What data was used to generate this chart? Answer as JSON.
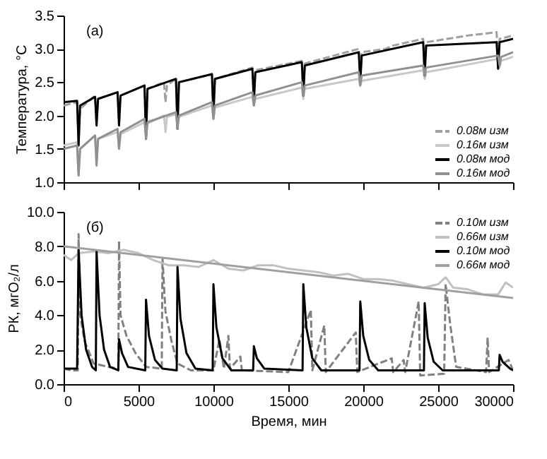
{
  "chart_data": [
    {
      "type": "line",
      "annotations": [
        "(а)"
      ],
      "ylabel": "Температура, °С",
      "xlim": [
        0,
        30000
      ],
      "xticks": [
        0,
        5000,
        10000,
        15000,
        20000,
        25000,
        30000
      ],
      "ylim": [
        1,
        3.5
      ],
      "yticks": [
        {
          "value": 1,
          "label": "1.0"
        },
        1.5,
        {
          "value": 2,
          "label": "2.0"
        },
        2.5,
        {
          "value": 3,
          "label": "3.0"
        },
        3.5
      ],
      "tick_labels": "y",
      "grid": false,
      "legend": "bottom right",
      "series": [
        {
          "name": "0.08м изм",
          "color": "#a0a0a0",
          "line_style": "dashed",
          "x": [
            0,
            900,
            1000,
            1100,
            2100,
            2200,
            2300,
            3600,
            3700,
            3800,
            5400,
            5500,
            5600,
            6700,
            6800,
            6900,
            7500,
            7600,
            7700,
            9900,
            10000,
            10100,
            12600,
            12700,
            12800,
            15900,
            16000,
            16100,
            19700,
            19800,
            19900,
            21500,
            22000,
            24000,
            24100,
            24200,
            27000,
            28900,
            29000,
            29100,
            30000
          ],
          "values": [
            2.15,
            2.2,
            1.6,
            2.1,
            2.3,
            1.9,
            2.25,
            2.35,
            1.9,
            2.3,
            2.45,
            1.7,
            2.4,
            2.5,
            2.2,
            2.45,
            2.55,
            1.85,
            2.5,
            2.62,
            2.05,
            2.55,
            2.72,
            2.3,
            2.68,
            2.82,
            2.4,
            2.78,
            3.0,
            2.6,
            2.95,
            3.0,
            3.05,
            3.15,
            2.7,
            3.1,
            3.2,
            3.25,
            2.8,
            3.15,
            3.2
          ]
        },
        {
          "name": "0.16м изм",
          "color": "#c8c8c8",
          "line_style": "solid",
          "x": [
            0,
            900,
            1000,
            1100,
            2100,
            2200,
            2300,
            3600,
            3700,
            3800,
            5400,
            5500,
            5600,
            6700,
            6800,
            6900,
            7500,
            7600,
            7700,
            9900,
            10000,
            10100,
            12600,
            12700,
            12800,
            15900,
            16000,
            16100,
            19700,
            19800,
            19900,
            24000,
            24100,
            24200,
            29000,
            29100,
            29200,
            30000
          ],
          "values": [
            1.55,
            1.6,
            1.1,
            1.5,
            1.7,
            1.3,
            1.65,
            1.75,
            1.5,
            1.72,
            1.9,
            1.7,
            1.88,
            2.0,
            1.75,
            1.98,
            2.02,
            1.85,
            1.98,
            2.15,
            1.95,
            2.12,
            2.28,
            2.15,
            2.25,
            2.42,
            2.25,
            2.4,
            2.55,
            2.45,
            2.52,
            2.68,
            2.55,
            2.65,
            2.85,
            2.72,
            2.82,
            2.88
          ]
        },
        {
          "name": "0.08м мод",
          "color": "#000000",
          "line_style": "solid",
          "x": [
            0,
            900,
            1000,
            1100,
            2100,
            2200,
            2300,
            3600,
            3700,
            3800,
            5400,
            5500,
            5600,
            7500,
            7600,
            7700,
            9900,
            10000,
            10100,
            12600,
            12700,
            12800,
            15900,
            16000,
            16100,
            19700,
            19800,
            19900,
            24000,
            24100,
            24200,
            28900,
            29000,
            29100,
            30000
          ],
          "values": [
            2.2,
            2.22,
            1.55,
            2.15,
            2.28,
            1.85,
            2.25,
            2.35,
            1.85,
            2.3,
            2.45,
            1.65,
            2.4,
            2.55,
            1.8,
            2.5,
            2.62,
            2.0,
            2.55,
            2.7,
            2.2,
            2.65,
            2.8,
            2.3,
            2.75,
            2.95,
            2.5,
            2.9,
            3.1,
            2.6,
            3.05,
            3.1,
            2.7,
            3.1,
            3.15
          ]
        },
        {
          "name": "0.16м мод",
          "color": "#909090",
          "line_style": "solid",
          "x": [
            0,
            900,
            1000,
            1100,
            2100,
            2200,
            2300,
            3600,
            3700,
            3800,
            5400,
            5500,
            5600,
            7500,
            7600,
            7700,
            9900,
            10000,
            10100,
            12600,
            12700,
            12800,
            15900,
            16000,
            16100,
            19700,
            19800,
            19900,
            24000,
            24100,
            24200,
            29000,
            29100,
            29200,
            30000
          ],
          "values": [
            1.5,
            1.55,
            1.1,
            1.5,
            1.7,
            1.25,
            1.65,
            1.8,
            1.5,
            1.75,
            1.95,
            1.65,
            1.9,
            2.05,
            1.8,
            2.0,
            2.2,
            1.95,
            2.15,
            2.35,
            2.15,
            2.3,
            2.5,
            2.3,
            2.45,
            2.65,
            2.45,
            2.6,
            2.75,
            2.6,
            2.72,
            2.9,
            2.75,
            2.88,
            2.95
          ]
        }
      ]
    },
    {
      "type": "line",
      "annotations": [
        "(б)"
      ],
      "xlabel": "Время, мин",
      "ylabel": "РК, мгО₂/л",
      "xlim": [
        0,
        30000
      ],
      "xticks": [
        0,
        5000,
        10000,
        15000,
        20000,
        25000,
        30000
      ],
      "ylim": [
        0,
        10
      ],
      "yticks": [
        {
          "value": 0,
          "label": "0.0"
        },
        {
          "value": 2,
          "label": "2.0"
        },
        {
          "value": 4,
          "label": "4.0"
        },
        {
          "value": 6,
          "label": "6.0"
        },
        {
          "value": 8,
          "label": "8.0"
        },
        {
          "value": 10,
          "label": "10.0"
        }
      ],
      "grid": false,
      "legend": "top right",
      "series": [
        {
          "name": "0.10м изм",
          "color": "#808080",
          "line_style": "dashed",
          "x": [
            0,
            500,
            950,
            1000,
            1100,
            1400,
            2000,
            3000,
            3650,
            3700,
            3800,
            4200,
            4800,
            5500,
            6550,
            6600,
            6800,
            7200,
            7600,
            8500,
            10000,
            10400,
            10700,
            11000,
            11100,
            11800,
            11900,
            15000,
            16500,
            16600,
            17400,
            17500,
            19500,
            19600,
            21900,
            22000,
            22700,
            22800,
            23700,
            23800,
            25400,
            25500,
            25800,
            26200,
            28200,
            28300,
            28400,
            29700,
            30000
          ],
          "values": [
            0.9,
            0.8,
            0.8,
            8.7,
            4.0,
            2.5,
            1.2,
            1.0,
            0.9,
            8.3,
            4.0,
            2.8,
            1.8,
            1.0,
            0.9,
            7.3,
            4.2,
            2.5,
            1.2,
            0.8,
            0.8,
            2.6,
            0.9,
            2.8,
            0.9,
            1.6,
            0.8,
            0.7,
            4.3,
            0.8,
            3.4,
            0.7,
            3.0,
            0.7,
            1.5,
            0.7,
            1.4,
            0.7,
            4.8,
            0.5,
            0.6,
            5.8,
            3.5,
            1.0,
            0.7,
            2.7,
            0.7,
            1.4,
            0.8
          ]
        },
        {
          "name": "0.66м изм",
          "color": "#c0c0c0",
          "line_style": "solid",
          "x": [
            0,
            500,
            1000,
            2000,
            3000,
            4000,
            5000,
            6000,
            7000,
            8000,
            9000,
            10000,
            11000,
            12000,
            13000,
            14000,
            15000,
            16000,
            17000,
            18000,
            19000,
            20000,
            21000,
            22000,
            23000,
            24000,
            25000,
            25500,
            26000,
            27000,
            28000,
            29000,
            29500,
            30000
          ],
          "values": [
            7.5,
            7.2,
            7.6,
            7.7,
            7.6,
            7.8,
            7.6,
            7.2,
            6.9,
            6.9,
            6.8,
            7.2,
            6.7,
            6.6,
            6.9,
            6.9,
            6.7,
            6.6,
            6.5,
            6.3,
            6.4,
            6.1,
            6.1,
            6.0,
            5.8,
            5.6,
            5.8,
            6.2,
            5.6,
            5.5,
            5.2,
            5.2,
            5.9,
            5.6
          ]
        },
        {
          "name": "0.10м мод",
          "color": "#000000",
          "line_style": "solid",
          "x": [
            0,
            900,
            1000,
            1200,
            1500,
            1900,
            2150,
            2200,
            2400,
            2700,
            3100,
            3650,
            3700,
            3900,
            4300,
            5450,
            5500,
            5700,
            6100,
            6600,
            7550,
            7600,
            7800,
            8200,
            8800,
            9950,
            10000,
            10200,
            10600,
            11200,
            12650,
            12700,
            12900,
            13400,
            15950,
            16000,
            16200,
            16600,
            17200,
            19750,
            19800,
            20000,
            20400,
            21000,
            24050,
            24100,
            24300,
            24700,
            25300,
            29050,
            29100,
            29300,
            29800,
            30000
          ],
          "values": [
            0.9,
            0.9,
            7.8,
            4.0,
            2.0,
            1.0,
            0.8,
            7.7,
            4.0,
            2.0,
            1.0,
            0.8,
            2.6,
            1.8,
            1.0,
            0.8,
            4.9,
            2.8,
            1.4,
            0.9,
            0.8,
            6.8,
            3.8,
            1.8,
            0.9,
            0.8,
            5.8,
            3.3,
            1.5,
            0.8,
            0.8,
            2.2,
            1.5,
            0.9,
            0.8,
            5.8,
            3.3,
            1.5,
            0.8,
            0.8,
            4.8,
            2.8,
            1.4,
            0.8,
            0.8,
            4.7,
            2.7,
            1.3,
            0.8,
            0.8,
            1.7,
            1.3,
            0.9,
            0.8
          ]
        },
        {
          "name": "0.66м мод",
          "color": "#a0a0a0",
          "line_style": "solid",
          "x": [
            0,
            30000
          ],
          "values": [
            8.0,
            5.0
          ]
        }
      ]
    }
  ]
}
